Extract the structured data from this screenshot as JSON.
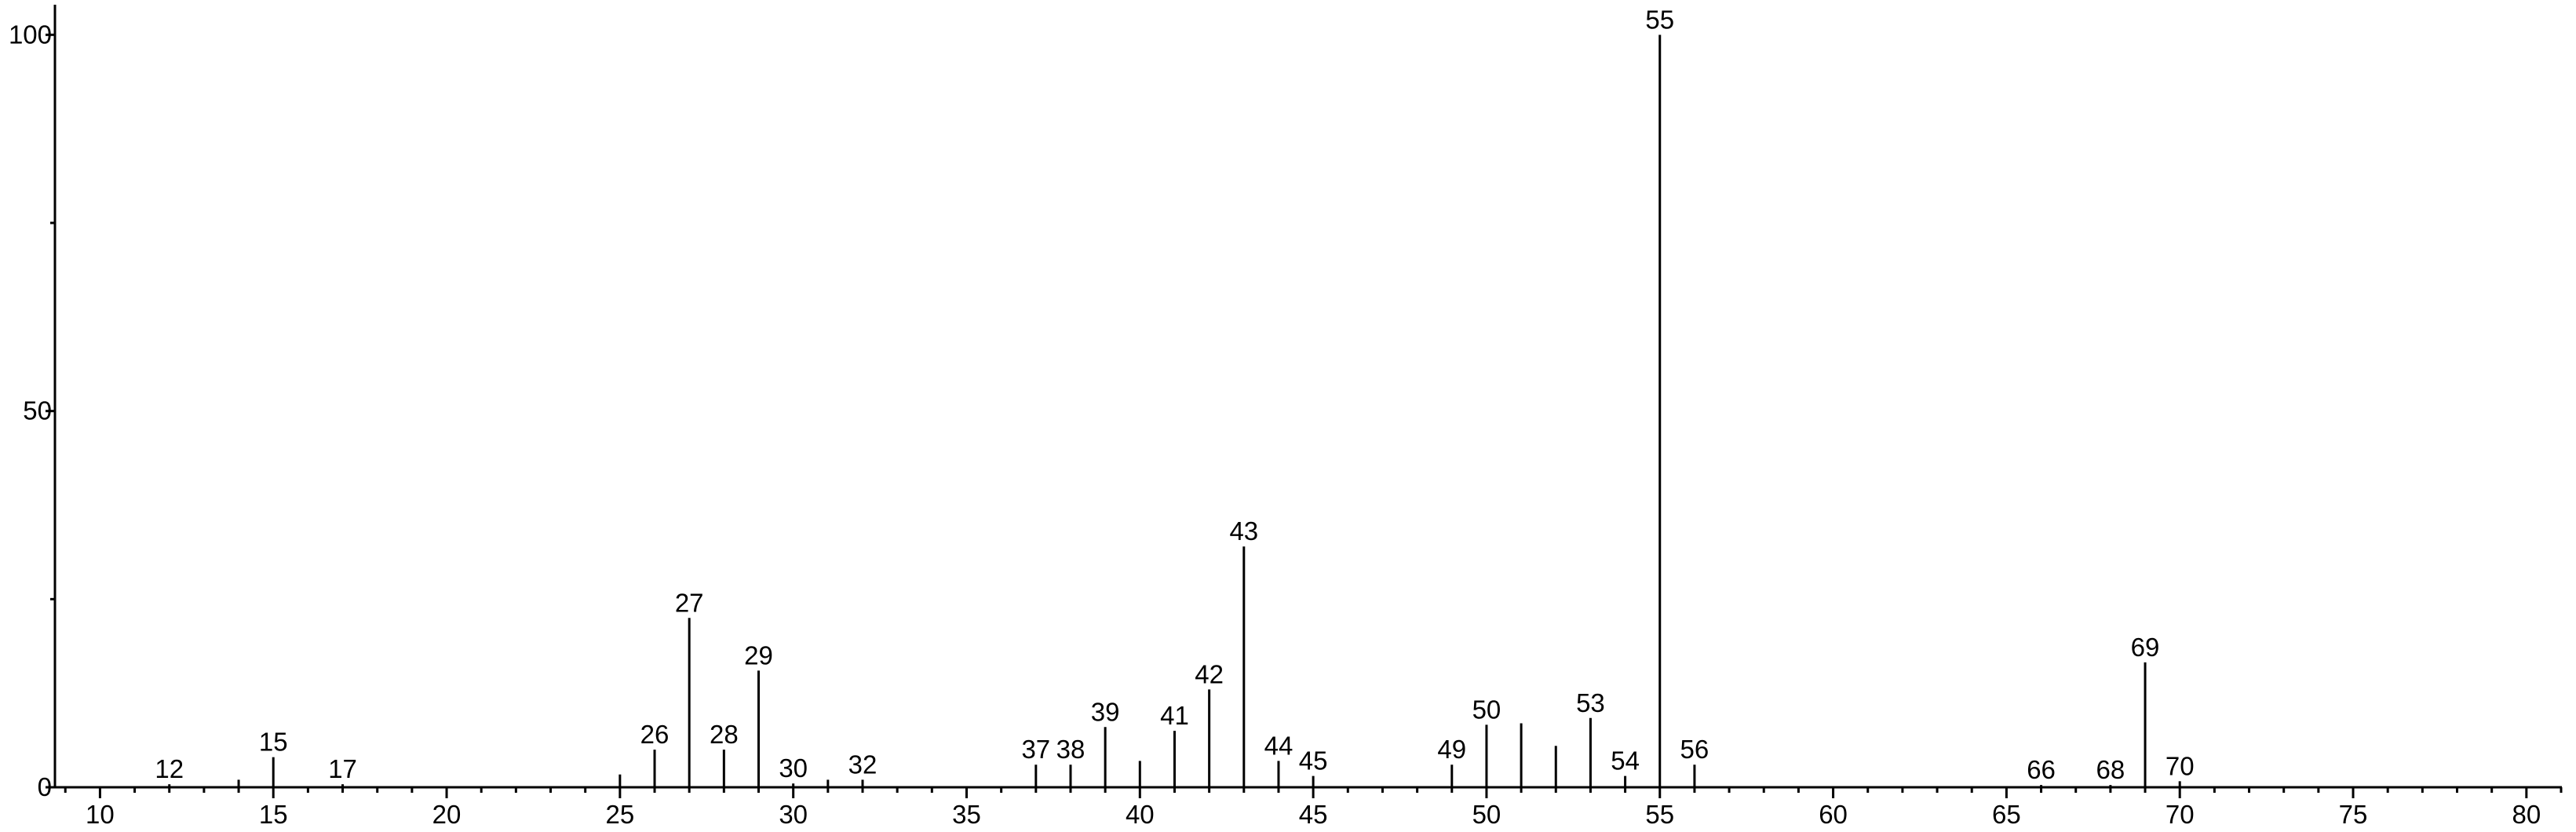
{
  "chart_data": {
    "type": "stem",
    "x": [
      12,
      14,
      15,
      17,
      25,
      26,
      27,
      28,
      29,
      30,
      31,
      32,
      37,
      38,
      39,
      40,
      41,
      42,
      43,
      44,
      45,
      49,
      50,
      51,
      52,
      53,
      54,
      55,
      56,
      66,
      68,
      69,
      70
    ],
    "values": [
      0.4,
      1,
      4,
      0.4,
      1.7,
      5,
      22.5,
      5,
      15.5,
      0.5,
      1,
      1,
      3,
      3,
      8,
      3.5,
      7.5,
      13,
      32,
      3.5,
      1.5,
      3,
      8.3,
      8.5,
      5.5,
      9.2,
      1.5,
      100,
      3,
      0.3,
      0.3,
      16.6,
      0.8
    ],
    "labels": [
      12,
      null,
      15,
      17,
      null,
      26,
      27,
      28,
      29,
      30,
      null,
      32,
      37,
      38,
      39,
      null,
      41,
      42,
      43,
      44,
      45,
      49,
      50,
      null,
      null,
      53,
      54,
      55,
      56,
      66,
      68,
      69,
      70
    ],
    "color": "#000000",
    "xlim": [
      8.7,
      81
    ],
    "xticks": [
      10,
      15,
      20,
      25,
      30,
      35,
      40,
      45,
      50,
      55,
      60,
      65,
      70,
      75,
      80
    ],
    "xminorticks": [
      9,
      11,
      12,
      13,
      14,
      16,
      17,
      18,
      19,
      21,
      22,
      23,
      24,
      26,
      27,
      28,
      29,
      31,
      32,
      33,
      34,
      36,
      37,
      38,
      39,
      41,
      42,
      43,
      44,
      46,
      47,
      48,
      49,
      51,
      52,
      53,
      54,
      56,
      57,
      58,
      59,
      61,
      62,
      63,
      64,
      66,
      67,
      68,
      69,
      71,
      72,
      73,
      74,
      76,
      77,
      78,
      79,
      81
    ],
    "ylim": [
      0,
      104
    ],
    "yticks": [
      0,
      50,
      100
    ],
    "yminorticks": [
      25,
      75
    ]
  }
}
